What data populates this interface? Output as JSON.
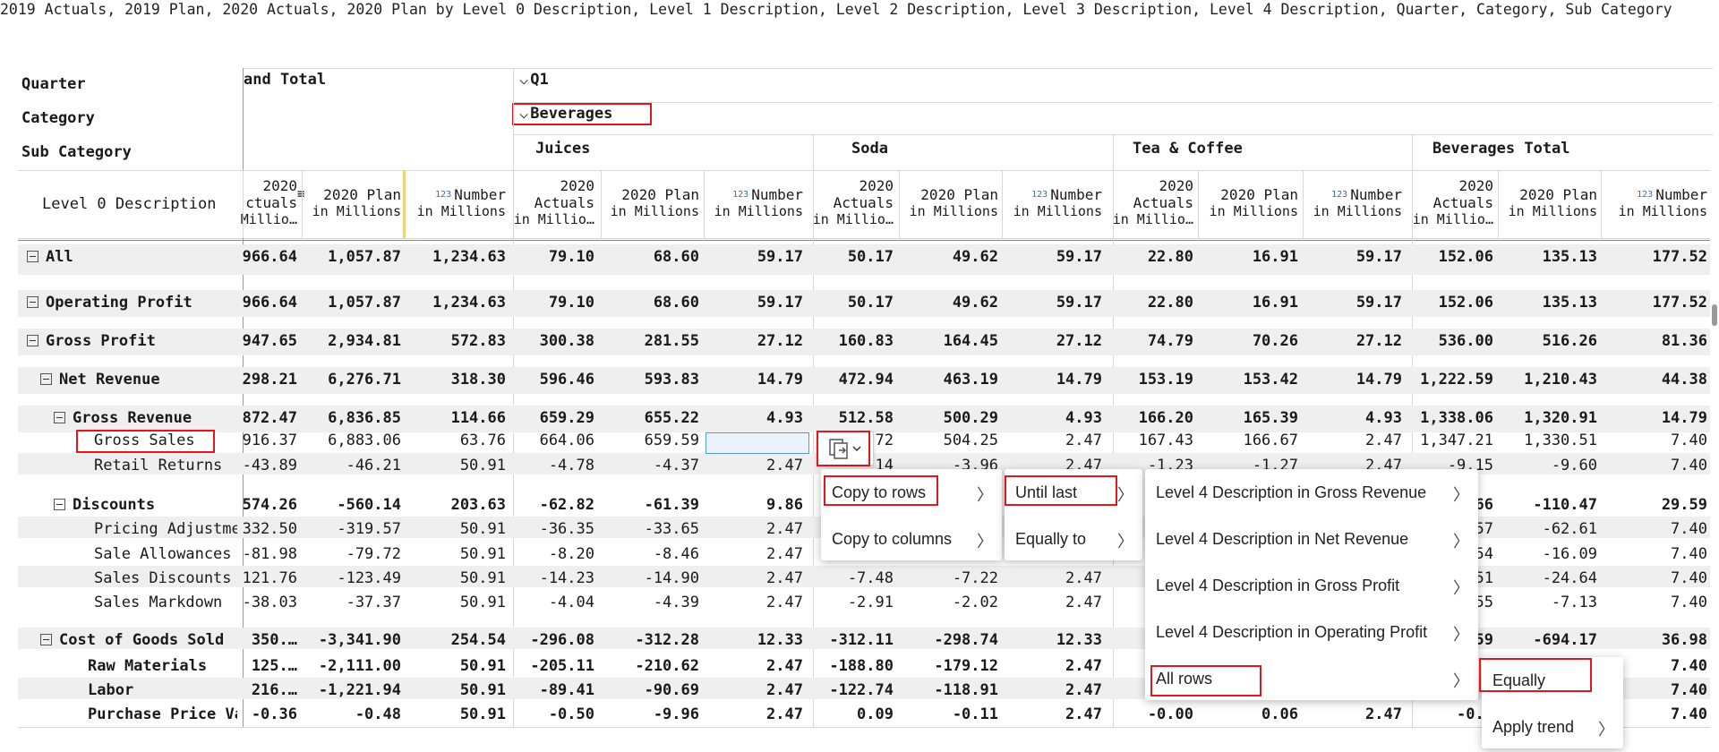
{
  "title": "2019 Actuals, 2019 Plan, 2020 Actuals, 2020 Plan by Level 0 Description, Level 1 Description, Level 2 Description, Level 3 Description, Level 4 Description, Quarter, Category, Sub Category",
  "header_labels": {
    "quarter": "Quarter",
    "category": "Category",
    "subcategory": "Sub Category",
    "level0": "Level 0 Description"
  },
  "grand_total_label": "and Total",
  "quarter_label": "Q1",
  "category_label": "Beverages",
  "subcategories": [
    "Juices",
    "Soda",
    "Tea & Coffee",
    "Beverages Total"
  ],
  "col_headers": {
    "actuals_top": "2020",
    "actuals_mid": "Actuals",
    "actuals_sub": "in Millio…",
    "actuals_mid_cut": "ctuals",
    "actuals_sub_cut": "Millio…",
    "plan_top": "2020 Plan",
    "plan_sub": "in Millions",
    "number_icon": "123",
    "number_top": "Number",
    "number_sub": "in Millions"
  },
  "rows": [
    {
      "label": "All",
      "indent": 0,
      "bold": true,
      "expand": true,
      "values": [
        "966.64",
        "1,057.87",
        "1,234.63",
        "79.10",
        "68.60",
        "59.17",
        "50.17",
        "49.62",
        "59.17",
        "22.80",
        "16.91",
        "59.17",
        "152.06",
        "135.13",
        "177.52"
      ]
    },
    {
      "label": "Operating Profit",
      "indent": 0,
      "bold": true,
      "expand": true,
      "values": [
        "966.64",
        "1,057.87",
        "1,234.63",
        "79.10",
        "68.60",
        "59.17",
        "50.17",
        "49.62",
        "59.17",
        "22.80",
        "16.91",
        "59.17",
        "152.06",
        "135.13",
        "177.52"
      ]
    },
    {
      "label": "Gross Profit",
      "indent": 1,
      "bold": true,
      "expand": true,
      "values": [
        "947.65",
        "2,934.81",
        "572.83",
        "300.38",
        "281.55",
        "27.12",
        "160.83",
        "164.45",
        "27.12",
        "74.79",
        "70.26",
        "27.12",
        "536.00",
        "516.26",
        "81.36"
      ]
    },
    {
      "label": "Net Revenue",
      "indent": 2,
      "bold": true,
      "expand": true,
      "values": [
        "298.21",
        "6,276.71",
        "318.30",
        "596.46",
        "593.83",
        "14.79",
        "472.94",
        "463.19",
        "14.79",
        "153.19",
        "153.42",
        "14.79",
        "1,222.59",
        "1,210.43",
        "44.38"
      ]
    },
    {
      "label": "Gross Revenue",
      "indent": 3,
      "bold": true,
      "expand": true,
      "values": [
        "872.47",
        "6,836.85",
        "114.66",
        "659.29",
        "655.22",
        "4.93",
        "512.58",
        "500.29",
        "4.93",
        "166.20",
        "165.39",
        "4.93",
        "1,338.06",
        "1,320.91",
        "14.79"
      ]
    },
    {
      "label": "Gross Sales",
      "indent": 4,
      "bold": false,
      "expand": false,
      "values": [
        "916.37",
        "6,883.06",
        "63.76",
        "664.06",
        "659.59",
        "2.47",
        "72",
        "504.25",
        "2.47",
        "167.43",
        "166.67",
        "2.47",
        "1,347.21",
        "1,330.51",
        "7.40"
      ]
    },
    {
      "label": "Retail Returns",
      "indent": 4,
      "bold": false,
      "expand": false,
      "values": [
        "-43.89",
        "-46.21",
        "50.91",
        "-4.78",
        "-4.37",
        "2.47",
        "14",
        "-3.96",
        "2.47",
        "-1.23",
        "-1.27",
        "2.47",
        "-9.15",
        "-9.60",
        "7.40"
      ]
    },
    {
      "label": "Discounts",
      "indent": 3,
      "bold": true,
      "expand": true,
      "values": [
        "574.26",
        "-560.14",
        "203.63",
        "-62.82",
        "-61.39",
        "9.86",
        "",
        "",
        "",
        "",
        "",
        "",
        "66",
        "-110.47",
        "29.59"
      ]
    },
    {
      "label": "Pricing Adjustme",
      "indent": 4,
      "bold": false,
      "expand": false,
      "values": [
        "332.50",
        "-319.57",
        "50.91",
        "-36.35",
        "-33.65",
        "2.47",
        "",
        "",
        "",
        "",
        "",
        "",
        "57",
        "-62.61",
        "7.40"
      ]
    },
    {
      "label": "Sale Allowances",
      "indent": 4,
      "bold": false,
      "expand": false,
      "values": [
        "-81.98",
        "-79.72",
        "50.91",
        "-8.20",
        "-8.46",
        "2.47",
        "",
        "",
        "",
        "",
        "",
        "",
        "54",
        "-16.09",
        "7.40"
      ]
    },
    {
      "label": "Sales Discounts",
      "indent": 4,
      "bold": false,
      "expand": false,
      "values": [
        "121.76",
        "-123.49",
        "50.91",
        "-14.23",
        "-14.90",
        "2.47",
        "-7.48",
        "-7.22",
        "2.47",
        "",
        "",
        "",
        "51",
        "-24.64",
        "7.40"
      ]
    },
    {
      "label": "Sales Markdown",
      "indent": 4,
      "bold": false,
      "expand": false,
      "values": [
        "-38.03",
        "-37.37",
        "50.91",
        "-4.04",
        "-4.39",
        "2.47",
        "-2.91",
        "-2.02",
        "2.47",
        "",
        "",
        "",
        "55",
        "-7.13",
        "7.40"
      ]
    },
    {
      "label": "Cost of Goods Sold",
      "indent": 2,
      "bold": true,
      "expand": true,
      "values": [
        "350.…",
        "-3,341.90",
        "254.54",
        "-296.08",
        "-312.28",
        "12.33",
        "-312.11",
        "-298.74",
        "12.33",
        "",
        "",
        "",
        "59",
        "-694.17",
        "36.98"
      ]
    },
    {
      "label": "Raw Materials",
      "indent": 3,
      "bold": true,
      "expand": false,
      "values": [
        "125.…",
        "-2,111.00",
        "50.91",
        "-205.11",
        "-210.62",
        "2.47",
        "-188.80",
        "-179.12",
        "2.47",
        "",
        "",
        "",
        "",
        "",
        "7.40"
      ]
    },
    {
      "label": "Labor",
      "indent": 3,
      "bold": true,
      "expand": false,
      "values": [
        "216.…",
        "-1,221.94",
        "50.91",
        "-89.41",
        "-90.69",
        "2.47",
        "-122.74",
        "-118.91",
        "2.47",
        "",
        "",
        "",
        "",
        "",
        "7.40"
      ]
    },
    {
      "label": "Purchase Price Va",
      "indent": 3,
      "bold": true,
      "expand": false,
      "values": [
        "-0.36",
        "-0.48",
        "50.91",
        "-0.50",
        "-9.96",
        "2.47",
        "0.09",
        "-0.11",
        "2.47",
        "-0.00",
        "0.06",
        "2.47",
        "-0.4",
        "",
        "7.40"
      ]
    }
  ],
  "menu1": [
    {
      "label": "Copy to rows"
    },
    {
      "label": "Copy to columns"
    }
  ],
  "menu2": [
    {
      "label": "Until last"
    },
    {
      "label": "Equally to"
    }
  ],
  "menu3": [
    {
      "label": "Level 4 Description in Gross Revenue"
    },
    {
      "label": "Level 4 Description in Net Revenue"
    },
    {
      "label": "Level 4 Description in Gross Profit"
    },
    {
      "label": "Level 4 Description in Operating Profit"
    },
    {
      "label": "All rows"
    }
  ],
  "menu4": [
    {
      "label": "Equally"
    },
    {
      "label": "Apply trend"
    }
  ],
  "icons": {
    "expand": "minus-square-icon",
    "chevron": "chevron-down-icon",
    "submenu": "chevron-right-icon",
    "copy": "copy-icon",
    "sort": "sort-icon"
  }
}
